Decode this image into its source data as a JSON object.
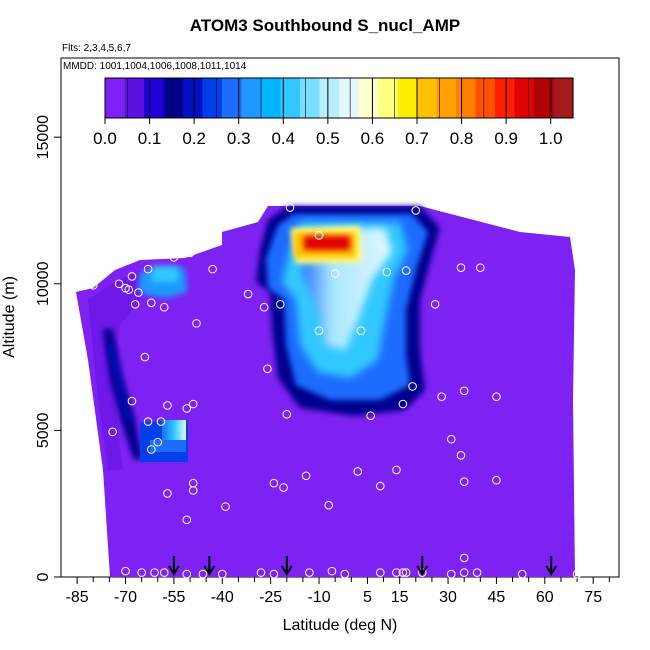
{
  "chart_data": {
    "type": "heatmap",
    "title": "ATOM3 Southbound S_nucl_AMP",
    "flights_note": "Flts: 2,3,4,5,6,7",
    "dates_note": "MMDD: 1001,1004,1006,1008,1011,1014",
    "xlabel": "Latitude (deg N)",
    "ylabel": "Altitude (m)",
    "xlim": [
      -90,
      83
    ],
    "ylim": [
      0,
      17700
    ],
    "x_ticks": [
      -85,
      -70,
      -55,
      -40,
      -25,
      -10,
      5,
      15,
      30,
      45,
      60,
      75
    ],
    "x_tick_labels": [
      "-85",
      "-70",
      "-55",
      "-40",
      "-25",
      "-10",
      "5",
      "15",
      "30",
      "45",
      "60",
      "75"
    ],
    "y_ticks": [
      0,
      5000,
      10000,
      15000
    ],
    "y_tick_labels": [
      "0",
      "5000",
      "10000",
      "15000"
    ],
    "colorbar": {
      "min": 0.0,
      "max": 1.05,
      "tick_values": [
        0.0,
        0.1,
        0.2,
        0.3,
        0.4,
        0.5,
        0.6,
        0.7,
        0.8,
        0.9,
        1.0
      ],
      "tick_labels": [
        "0.0",
        "0.1",
        "0.2",
        "0.3",
        "0.4",
        "0.5",
        "0.6",
        "0.7",
        "0.8",
        "0.9",
        "1.0"
      ],
      "colors": [
        "#7d22f2",
        "#5b11e0",
        "#2000d8",
        "#00008c",
        "#0012c0",
        "#0040e8",
        "#1d6cff",
        "#1f99ff",
        "#00b4ff",
        "#30c8ff",
        "#78dfff",
        "#b8eeff",
        "#e3f8ff",
        "#ffffd2",
        "#ffff80",
        "#ffee00",
        "#ffc000",
        "#ffa000",
        "#ff8000",
        "#ff5000",
        "#ff2000",
        "#e00000",
        "#b00000",
        "#a51a1a"
      ]
    },
    "field_background_value": 0.01,
    "features": [
      {
        "name": "upper-tropospheric maximum",
        "lat": [
          -22,
          24
        ],
        "alt": [
          5200,
          12600
        ],
        "peak_lat": -4,
        "peak_alt": 11600,
        "peak_value": 0.97
      },
      {
        "name": "mid-level plume",
        "lat": [
          -58,
          -45
        ],
        "alt": [
          4300,
          5800
        ],
        "peak_value": 0.45
      },
      {
        "name": "high southern plume",
        "lat": [
          -60,
          -48
        ],
        "alt": [
          9700,
          10900
        ],
        "peak_value": 0.4
      },
      {
        "name": "southern sloping band",
        "lat": [
          -75,
          -55
        ],
        "alt": [
          4000,
          10000
        ],
        "peak_value": 0.12
      }
    ],
    "data_points": [
      [
        -85,
        9950
      ],
      [
        -80,
        9950
      ],
      [
        -72,
        10000
      ],
      [
        -70,
        9850
      ],
      [
        -68,
        10250
      ],
      [
        -69,
        9800
      ],
      [
        -66,
        9700
      ],
      [
        -67,
        9300
      ],
      [
        -62,
        9350
      ],
      [
        -58,
        9200
      ],
      [
        -63,
        10500
      ],
      [
        -55,
        10900
      ],
      [
        -50,
        11050
      ],
      [
        -43,
        10500
      ],
      [
        -48,
        8650
      ],
      [
        -32,
        9650
      ],
      [
        -27,
        9200
      ],
      [
        -22,
        9300
      ],
      [
        -19,
        12600
      ],
      [
        -10,
        11650
      ],
      [
        -5,
        10350
      ],
      [
        3,
        8400
      ],
      [
        -10,
        8400
      ],
      [
        11,
        10400
      ],
      [
        17,
        10450
      ],
      [
        26,
        9300
      ],
      [
        20,
        12500
      ],
      [
        34,
        10550
      ],
      [
        40,
        10550
      ],
      [
        70,
        11850
      ],
      [
        -64,
        7500
      ],
      [
        -26,
        7100
      ],
      [
        6,
        5500
      ],
      [
        -20,
        5550
      ],
      [
        -68,
        6000
      ],
      [
        -57,
        5850
      ],
      [
        -51,
        5750
      ],
      [
        -49,
        5900
      ],
      [
        -74,
        4950
      ],
      [
        -63,
        5300
      ],
      [
        -59,
        5300
      ],
      [
        -60,
        4600
      ],
      [
        -62,
        4350
      ],
      [
        -57,
        2850
      ],
      [
        -49,
        3200
      ],
      [
        -49,
        2950
      ],
      [
        -51,
        1950
      ],
      [
        -39,
        2400
      ],
      [
        -24,
        3200
      ],
      [
        -14,
        3450
      ],
      [
        -21,
        3050
      ],
      [
        -7,
        2450
      ],
      [
        2,
        3600
      ],
      [
        9,
        3100
      ],
      [
        14,
        3650
      ],
      [
        19,
        6500
      ],
      [
        16,
        5900
      ],
      [
        28,
        6150
      ],
      [
        35,
        6350
      ],
      [
        31,
        4700
      ],
      [
        34,
        4150
      ],
      [
        35,
        3250
      ],
      [
        45,
        6150
      ],
      [
        45,
        3300
      ],
      [
        71,
        3300
      ],
      [
        -70,
        200
      ],
      [
        -65,
        150
      ],
      [
        -61,
        150
      ],
      [
        -58,
        150
      ],
      [
        -51,
        100
      ],
      [
        -46,
        100
      ],
      [
        -40,
        100
      ],
      [
        -28,
        150
      ],
      [
        -24,
        100
      ],
      [
        -13,
        150
      ],
      [
        -6,
        200
      ],
      [
        -2,
        100
      ],
      [
        9,
        150
      ],
      [
        14,
        150
      ],
      [
        16,
        150
      ],
      [
        17,
        150
      ],
      [
        22,
        150
      ],
      [
        31,
        100
      ],
      [
        35,
        650
      ],
      [
        35,
        150
      ],
      [
        39,
        150
      ],
      [
        53,
        100
      ],
      [
        70,
        100
      ]
    ],
    "flight_start_arrows_lat": [
      -55,
      -44,
      -20,
      22,
      62
    ],
    "grid": false,
    "legend": "colorbar top"
  }
}
